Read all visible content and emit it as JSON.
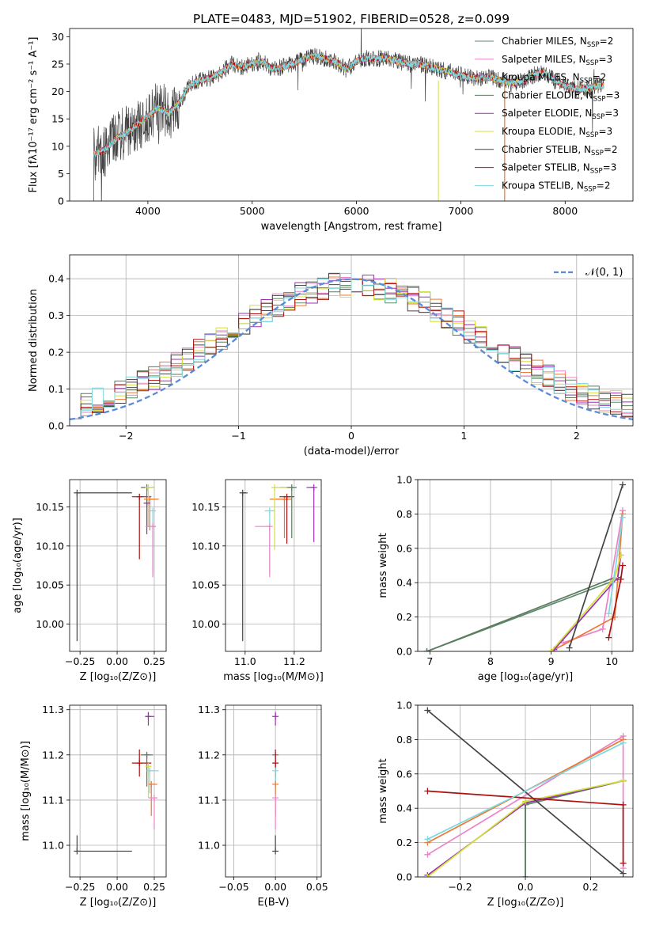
{
  "chart_data": [
    {
      "id": "spectrum",
      "type": "line",
      "title": "PLATE=0483, MJD=51902, FIBERID=0528, z=0.099",
      "xlabel": "wavelength [Angstrom, rest frame]",
      "ylabel": "Flux [fλ10⁻¹⁷ erg cm⁻² s⁻¹ A⁻¹]",
      "xlim": [
        3250,
        8650
      ],
      "ylim": [
        0,
        31.5
      ],
      "xticks": [
        4000,
        5000,
        6000,
        7000,
        8000
      ],
      "yticks": [
        0,
        5,
        10,
        15,
        20,
        25,
        30
      ],
      "x_range_data": [
        3480,
        8370
      ],
      "approx_continuum": [
        [
          3480,
          8.5
        ],
        [
          3600,
          9.5
        ],
        [
          3700,
          11.5
        ],
        [
          3800,
          12.5
        ],
        [
          3900,
          14
        ],
        [
          4000,
          15.5
        ],
        [
          4100,
          17
        ],
        [
          4200,
          16
        ],
        [
          4300,
          18
        ],
        [
          4400,
          21
        ],
        [
          4500,
          22
        ],
        [
          4600,
          22.5
        ],
        [
          4700,
          23.5
        ],
        [
          4800,
          25
        ],
        [
          4900,
          24.5
        ],
        [
          5000,
          25
        ],
        [
          5100,
          25.5
        ],
        [
          5200,
          24
        ],
        [
          5300,
          24.5
        ],
        [
          5400,
          25
        ],
        [
          5500,
          26
        ],
        [
          5600,
          26.5
        ],
        [
          5700,
          26
        ],
        [
          5800,
          25.5
        ],
        [
          5900,
          24
        ],
        [
          6000,
          25.5
        ],
        [
          6100,
          26
        ],
        [
          6200,
          26
        ],
        [
          6300,
          26
        ],
        [
          6400,
          25.5
        ],
        [
          6500,
          25
        ],
        [
          6600,
          25
        ],
        [
          6700,
          24.5
        ],
        [
          6800,
          24
        ],
        [
          6900,
          23.5
        ],
        [
          7000,
          23
        ],
        [
          7100,
          22.5
        ],
        [
          7200,
          22.5
        ],
        [
          7300,
          22.5
        ],
        [
          7400,
          22
        ],
        [
          7500,
          21.5
        ],
        [
          7600,
          22
        ],
        [
          7700,
          23
        ],
        [
          7800,
          23.5
        ],
        [
          7900,
          22
        ],
        [
          8000,
          21
        ],
        [
          8100,
          20.5
        ],
        [
          8200,
          20.5
        ],
        [
          8300,
          21
        ],
        [
          8370,
          21
        ]
      ],
      "series": [
        {
          "name": "Chabrier MILES, N_SSP=2",
          "color": "#5b8a6e"
        },
        {
          "name": "Salpeter MILES, N_SSP=3",
          "color": "#ee82c8"
        },
        {
          "name": "Kroupa MILES, N_SSP=2",
          "color": "#ee7733"
        },
        {
          "name": "Chabrier ELODIE, N_SSP=3",
          "color": "#5d7a5d"
        },
        {
          "name": "Salpeter ELODIE, N_SSP=3",
          "color": "#9b30b0"
        },
        {
          "name": "Kroupa ELODIE, N_SSP=3",
          "color": "#d4e03a"
        },
        {
          "name": "Chabrier STELIB, N_SSP=2",
          "color": "#444444"
        },
        {
          "name": "Salpeter STELIB, N_SSP=3",
          "color": "#aa1111"
        },
        {
          "name": "Kroupa STELIB, N_SSP=2",
          "color": "#7dd8e0"
        }
      ],
      "legend_position": "top-right"
    },
    {
      "id": "residuals",
      "type": "line",
      "xlabel": "(data-model)/error",
      "ylabel": "Normed distribution",
      "xlim": [
        -2.5,
        2.5
      ],
      "ylim": [
        0,
        0.465
      ],
      "xticks": [
        -2,
        -1,
        0,
        1,
        2
      ],
      "yticks": [
        0.0,
        0.1,
        0.2,
        0.3,
        0.4
      ],
      "bins": 50,
      "reference": {
        "name": "𝒩(0, 1)",
        "color": "#5b8ad8"
      },
      "grid": true,
      "legend_position": "top-right"
    },
    {
      "id": "age-vs-Z",
      "type": "scatter",
      "xlabel": "Z [log₁₀(Z/Z⊙)]",
      "ylabel": "age  [log₁₀(age/yr)]",
      "xlim": [
        -0.32,
        0.33
      ],
      "ylim": [
        9.965,
        10.185
      ],
      "xticks": [
        -0.25,
        0.0,
        0.25
      ],
      "yticks": [
        10.0,
        10.05,
        10.1,
        10.15
      ],
      "grid": true,
      "points": [
        {
          "x": -0.27,
          "y": 10.168,
          "xerr": [
            0.0,
            0.37
          ],
          "yerr": [
            0.19,
            0.0
          ],
          "color": "#444444"
        },
        {
          "x": 0.15,
          "y": 10.163,
          "xerr": [
            0.05,
            0.08
          ],
          "yerr": [
            0.08,
            0.0
          ],
          "color": "#aa1111"
        },
        {
          "x": 0.2,
          "y": 10.175,
          "xerr": [
            0.04,
            0.05
          ],
          "yerr": [
            0.05,
            0.0
          ],
          "color": "#5d7a5d"
        },
        {
          "x": 0.22,
          "y": 10.16,
          "xerr": [
            0.04,
            0.06
          ],
          "yerr": [
            0.04,
            0.0
          ],
          "color": "#ee7733"
        },
        {
          "x": 0.21,
          "y": 10.175,
          "xerr": [
            0.02,
            0.04
          ],
          "yerr": [
            0.05,
            0.0
          ],
          "color": "#d4e03a"
        },
        {
          "x": 0.2,
          "y": 10.155,
          "xerr": [
            0.02,
            0.02
          ],
          "yerr": [
            0.04,
            0.0
          ],
          "color": "#9b30b0"
        },
        {
          "x": 0.24,
          "y": 10.145,
          "xerr": [
            0.03,
            0.02
          ],
          "yerr": [
            0.08,
            0.0
          ],
          "color": "#7dd8e0"
        },
        {
          "x": 0.24,
          "y": 10.125,
          "xerr": [
            0.05,
            0.02
          ],
          "yerr": [
            0.065,
            0.0
          ],
          "color": "#ee82c8"
        }
      ]
    },
    {
      "id": "age-vs-mass",
      "type": "scatter",
      "xlabel": "mass [log₁₀(M/M⊙)]",
      "xlim": [
        10.92,
        11.31
      ],
      "ylim": [
        9.965,
        10.185
      ],
      "xticks": [
        11.0,
        11.2
      ],
      "yticks": [
        10.0,
        10.05,
        10.1,
        10.15
      ],
      "grid": true,
      "points": [
        {
          "x": 10.99,
          "y": 10.168,
          "xerr": [
            0.0,
            0.02
          ],
          "yerr": [
            0.19,
            0.0
          ],
          "color": "#444444"
        },
        {
          "x": 11.16,
          "y": 10.16,
          "xerr": [
            0.06,
            0.03
          ],
          "yerr": [
            0.05,
            0.0
          ],
          "color": "#ee7733"
        },
        {
          "x": 11.17,
          "y": 10.163,
          "xerr": [
            0.03,
            0.03
          ],
          "yerr": [
            0.06,
            0.0
          ],
          "color": "#aa1111"
        },
        {
          "x": 11.19,
          "y": 10.175,
          "xerr": [
            0.05,
            0.02
          ],
          "yerr": [
            0.065,
            0.0
          ],
          "color": "#5d7a5d"
        },
        {
          "x": 11.28,
          "y": 10.175,
          "xerr": [
            0.03,
            0.0
          ],
          "yerr": [
            0.07,
            0.0
          ],
          "color": "#9b30b0"
        },
        {
          "x": 11.12,
          "y": 10.175,
          "xerr": [
            0.0,
            0.05
          ],
          "yerr": [
            0.08,
            0.0
          ],
          "color": "#d4e03a"
        },
        {
          "x": 11.1,
          "y": 10.145,
          "xerr": [
            0.02,
            0.02
          ],
          "yerr": [
            0.08,
            0.0
          ],
          "color": "#7dd8e0"
        },
        {
          "x": 11.1,
          "y": 10.125,
          "xerr": [
            0.06,
            0.0
          ],
          "yerr": [
            0.065,
            0.0
          ],
          "color": "#ee82c8"
        }
      ]
    },
    {
      "id": "weight-vs-age",
      "type": "line",
      "xlabel": "age  [log₁₀(age/yr)]",
      "ylabel": "mass weight",
      "xlim": [
        6.8,
        10.35
      ],
      "ylim": [
        0,
        1
      ],
      "xticks": [
        7,
        8,
        9,
        10
      ],
      "yticks": [
        0.0,
        0.2,
        0.4,
        0.6,
        0.8,
        1.0
      ],
      "grid": true,
      "series": [
        {
          "name": "Chabrier MILES",
          "color": "#5b8a6e",
          "points": [
            [
              6.95,
              0.0
            ],
            [
              10.1,
              0.42
            ]
          ]
        },
        {
          "name": "Salpeter MILES",
          "color": "#ee82c8",
          "points": [
            [
              9.2,
              0.05
            ],
            [
              9.85,
              0.13
            ],
            [
              10.18,
              0.82
            ]
          ]
        },
        {
          "name": "Kroupa MILES",
          "color": "#ee7733",
          "points": [
            [
              9.0,
              0.0
            ],
            [
              10.05,
              0.2
            ],
            [
              10.18,
              0.8
            ]
          ]
        },
        {
          "name": "Chabrier ELODIE",
          "color": "#5d7a5d",
          "points": [
            [
              6.95,
              0.0
            ],
            [
              10.05,
              0.43
            ]
          ]
        },
        {
          "name": "Salpeter ELODIE",
          "color": "#9b30b0",
          "points": [
            [
              9.05,
              0.01
            ],
            [
              10.1,
              0.43
            ],
            [
              10.15,
              0.56
            ]
          ]
        },
        {
          "name": "Kroupa ELODIE",
          "color": "#d4e03a",
          "points": [
            [
              9.0,
              0.0
            ],
            [
              10.05,
              0.43
            ],
            [
              10.15,
              0.56
            ]
          ]
        },
        {
          "name": "Chabrier STELIB",
          "color": "#444444",
          "points": [
            [
              9.3,
              0.02
            ],
            [
              10.18,
              0.97
            ]
          ]
        },
        {
          "name": "Salpeter STELIB",
          "color": "#aa1111",
          "points": [
            [
              9.95,
              0.08
            ],
            [
              10.15,
              0.42
            ],
            [
              10.18,
              0.5
            ]
          ]
        },
        {
          "name": "Kroupa STELIB",
          "color": "#7dd8e0",
          "points": [
            [
              9.95,
              0.22
            ],
            [
              10.18,
              0.78
            ]
          ]
        }
      ]
    },
    {
      "id": "mass-vs-Z",
      "type": "scatter",
      "xlabel": "Z [log₁₀(Z/Z⊙)]",
      "ylabel": "mass [log₁₀(M/M⊙)]",
      "xlim": [
        -0.32,
        0.33
      ],
      "ylim": [
        10.93,
        11.31
      ],
      "xticks": [
        -0.25,
        0.0,
        0.25
      ],
      "yticks": [
        11.0,
        11.1,
        11.2,
        11.3
      ],
      "grid": true,
      "points": [
        {
          "x": -0.27,
          "y": 10.987,
          "xerr": [
            0.0,
            0.37
          ],
          "yerr": [
            0.0,
            0.035
          ],
          "color": "#444444"
        },
        {
          "x": 0.15,
          "y": 11.182,
          "xerr": [
            0.05,
            0.08
          ],
          "yerr": [
            0.03,
            0.03
          ],
          "color": "#aa1111"
        },
        {
          "x": 0.21,
          "y": 11.285,
          "xerr": [
            0.02,
            0.04
          ],
          "yerr": [
            0.02,
            0.01
          ],
          "color": "#9b30b0"
        },
        {
          "x": 0.2,
          "y": 11.2,
          "xerr": [
            0.04,
            0.04
          ],
          "yerr": [
            0.07,
            0.0
          ],
          "color": "#5d7a5d"
        },
        {
          "x": 0.22,
          "y": 11.165,
          "xerr": [
            0.02,
            0.06
          ],
          "yerr": [
            0.05,
            0.0
          ],
          "color": "#7dd8e0"
        },
        {
          "x": 0.23,
          "y": 11.135,
          "xerr": [
            0.02,
            0.04
          ],
          "yerr": [
            0.07,
            0.0
          ],
          "color": "#ee7733"
        },
        {
          "x": 0.21,
          "y": 11.175,
          "xerr": [
            0.02,
            0.02
          ],
          "yerr": [
            0.07,
            0.0
          ],
          "color": "#d4e03a"
        },
        {
          "x": 0.25,
          "y": 11.105,
          "xerr": [
            0.04,
            0.02
          ],
          "yerr": [
            0.07,
            0.0
          ],
          "color": "#ee82c8"
        }
      ]
    },
    {
      "id": "mass-vs-EBV",
      "type": "scatter",
      "xlabel": "E(B-V)",
      "xlim": [
        -0.06,
        0.055
      ],
      "ylim": [
        10.93,
        11.31
      ],
      "xticks": [
        -0.05,
        0.0,
        0.05
      ],
      "yticks": [
        11.0,
        11.1,
        11.2,
        11.3
      ],
      "grid": true,
      "points": [
        {
          "x": 0.0,
          "y": 11.285,
          "yerr": [
            0.02,
            0.01
          ],
          "color": "#9b30b0"
        },
        {
          "x": 0.0,
          "y": 11.2,
          "yerr": [
            0.07,
            0.0
          ],
          "color": "#5d7a5d"
        },
        {
          "x": 0.0,
          "y": 11.182,
          "yerr": [
            0.03,
            0.03
          ],
          "color": "#aa1111"
        },
        {
          "x": 0.0,
          "y": 11.165,
          "yerr": [
            0.05,
            0.0
          ],
          "color": "#7dd8e0"
        },
        {
          "x": 0.0,
          "y": 11.135,
          "yerr": [
            0.07,
            0.0
          ],
          "color": "#ee7733"
        },
        {
          "x": 0.0,
          "y": 11.105,
          "yerr": [
            0.07,
            0.0
          ],
          "color": "#ee82c8"
        },
        {
          "x": 0.0,
          "y": 10.987,
          "yerr": [
            0.0,
            0.035
          ],
          "color": "#444444"
        }
      ]
    },
    {
      "id": "weight-vs-Z",
      "type": "line",
      "xlabel": "Z [log₁₀(Z/Z⊙)]",
      "ylabel": "mass weight",
      "xlim": [
        -0.33,
        0.33
      ],
      "ylim": [
        0,
        1
      ],
      "xticks": [
        -0.2,
        0.0,
        0.2
      ],
      "yticks": [
        0.0,
        0.2,
        0.4,
        0.6,
        0.8,
        1.0
      ],
      "grid": true,
      "series": [
        {
          "name": "Chabrier MILES",
          "color": "#5b8a6e",
          "points": [
            [
              0.0,
              0.0
            ],
            [
              0.0,
              0.42
            ],
            [
              0.3,
              0.56
            ]
          ]
        },
        {
          "name": "Salpeter MILES",
          "color": "#ee82c8",
          "points": [
            [
              -0.3,
              0.13
            ],
            [
              0.3,
              0.82
            ],
            [
              0.3,
              0.05
            ]
          ]
        },
        {
          "name": "Kroupa MILES",
          "color": "#ee7733",
          "points": [
            [
              -0.3,
              0.2
            ],
            [
              0.3,
              0.8
            ]
          ]
        },
        {
          "name": "Chabrier ELODIE",
          "color": "#5d7a5d",
          "points": [
            [
              0.0,
              0.0
            ],
            [
              0.0,
              0.43
            ],
            [
              0.3,
              0.56
            ]
          ]
        },
        {
          "name": "Salpeter ELODIE",
          "color": "#9b30b0",
          "points": [
            [
              -0.3,
              0.01
            ],
            [
              0.0,
              0.43
            ],
            [
              0.3,
              0.56
            ]
          ]
        },
        {
          "name": "Kroupa ELODIE",
          "color": "#d4e03a",
          "points": [
            [
              -0.3,
              0.0
            ],
            [
              0.0,
              0.44
            ],
            [
              0.3,
              0.56
            ]
          ]
        },
        {
          "name": "Chabrier STELIB",
          "color": "#444444",
          "points": [
            [
              -0.3,
              0.97
            ],
            [
              0.3,
              0.02
            ]
          ]
        },
        {
          "name": "Salpeter STELIB",
          "color": "#aa1111",
          "points": [
            [
              -0.3,
              0.5
            ],
            [
              0.3,
              0.42
            ],
            [
              0.3,
              0.08
            ]
          ]
        },
        {
          "name": "Kroupa STELIB",
          "color": "#7dd8e0",
          "points": [
            [
              -0.3,
              0.22
            ],
            [
              0.3,
              0.78
            ]
          ]
        }
      ]
    }
  ]
}
